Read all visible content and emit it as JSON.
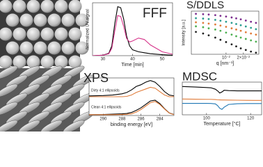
{
  "chart_data": [
    {
      "type": "line",
      "title": "FFF",
      "xlabel": "Time [min]",
      "ylabel": "Normalized UV signal",
      "x": [
        26.5,
        30,
        32,
        33,
        34,
        35,
        36,
        37,
        38,
        39,
        40,
        42,
        44,
        46,
        50,
        53.5
      ],
      "series": [
        {
          "color": "#000000",
          "values": [
            0,
            0.01,
            0.05,
            0.2,
            0.65,
            1.0,
            0.98,
            0.75,
            0.4,
            0.2,
            0.12,
            0.08,
            0.06,
            0.04,
            0.02,
            0.01
          ]
        },
        {
          "color": "#d6338a",
          "values": [
            0,
            0.01,
            0.04,
            0.15,
            0.5,
            0.82,
            0.8,
            0.6,
            0.35,
            0.28,
            0.3,
            0.36,
            0.33,
            0.22,
            0.08,
            0.03
          ]
        }
      ],
      "xlim": [
        26.5,
        53.5
      ],
      "ylim": [
        0,
        1.08
      ],
      "xticks": [
        30,
        40,
        50
      ]
    },
    {
      "type": "scatter",
      "title": "S/DDLS",
      "xlabel": "q [nm⁻¹]",
      "ylabel": "Intensity [a.u.]",
      "xlog": true,
      "ylog": true,
      "x": [
        0.003,
        0.004,
        0.005,
        0.0065,
        0.008,
        0.01,
        0.0125,
        0.015,
        0.018,
        0.022,
        0.027,
        0.033
      ],
      "series": [
        {
          "color": "#7b2d8e",
          "values": [
            6,
            5.5,
            5,
            4.3,
            3.6,
            3,
            2.4,
            1.9,
            1.5,
            1.1,
            0.8,
            0.6
          ]
        },
        {
          "color": "#2a9d8f",
          "values": [
            2,
            1.8,
            1.6,
            1.3,
            1.05,
            0.8,
            0.6,
            0.45,
            0.33,
            0.24,
            0.17,
            0.12
          ]
        },
        {
          "color": "#e07b39",
          "values": [
            0.7,
            0.6,
            0.5,
            0.4,
            0.3,
            0.22,
            0.15,
            0.11,
            0.08,
            0.055,
            0.04,
            0.03
          ]
        },
        {
          "color": "#4caf50",
          "values": [
            0.25,
            0.2,
            0.15,
            0.11,
            0.08,
            0.05,
            0.03,
            0.02,
            0.014,
            0.01,
            0.007,
            0.005
          ]
        },
        {
          "color": "#222222",
          "values": [
            0.06,
            0.04,
            0.025,
            0.014,
            0.008,
            0.0045,
            0.0025,
            0.0015,
            0.0009,
            0.0006,
            0.0004,
            0.0003
          ]
        }
      ],
      "xlim": [
        0.0025,
        0.037
      ],
      "ylim": [
        0.0002,
        12
      ],
      "xticks": [
        {
          "value": 0.01,
          "label": "10⁻²"
        },
        {
          "value": 0.02,
          "label": "2×10⁻²"
        }
      ]
    },
    {
      "type": "line",
      "title": "XPS",
      "xlabel": "binding energy [eV]",
      "annotations": [
        "Dirty 4:1 ellipsoids",
        "Clean 4:1 ellipsoids"
      ],
      "x": [
        291.5,
        290,
        289,
        288,
        287.5,
        287,
        286.5,
        286,
        285.5,
        285,
        284.5,
        284,
        283.5,
        283,
        282.5
      ],
      "series": [
        {
          "color": "#000000",
          "values": [
            1.15,
            1.17,
            1.2,
            1.27,
            1.35,
            1.5,
            1.7,
            1.8,
            1.95,
            2.05,
            1.95,
            1.7,
            1.4,
            1.2,
            1.15
          ]
        },
        {
          "color": "#e07b39",
          "values": [
            1.1,
            1.1,
            1.1,
            1.1,
            1.12,
            1.2,
            1.35,
            1.45,
            1.55,
            1.65,
            1.6,
            1.4,
            1.2,
            1.1,
            1.1
          ]
        },
        {
          "color": "#000000",
          "values": [
            0.05,
            0.06,
            0.08,
            0.1,
            0.12,
            0.18,
            0.3,
            0.45,
            0.65,
            0.85,
            0.9,
            0.7,
            0.4,
            0.15,
            0.06
          ]
        },
        {
          "color": "#e07b39",
          "values": [
            0.05,
            0.05,
            0.05,
            0.06,
            0.07,
            0.1,
            0.2,
            0.35,
            0.55,
            0.75,
            0.82,
            0.65,
            0.38,
            0.14,
            0.05
          ]
        }
      ],
      "xlim": [
        291.5,
        282.5
      ],
      "ylim": [
        0,
        2.2
      ],
      "xticks": [
        290,
        288,
        286,
        284
      ]
    },
    {
      "type": "line",
      "title": "MDSC",
      "xlabel": "Temperature [°C]",
      "x": [
        89,
        95,
        100,
        102,
        104,
        105,
        106,
        107,
        108,
        110,
        114,
        118,
        122,
        125
      ],
      "series": [
        {
          "color": "#000000",
          "values": [
            2.6,
            2.55,
            2.5,
            2.48,
            2.35,
            2.2,
            2.0,
            2.1,
            2.25,
            2.22,
            2.2,
            2.2,
            2.2,
            2.2
          ]
        },
        {
          "color": "#e07b39",
          "values": [
            1.45,
            1.43,
            1.42,
            1.42,
            1.4,
            1.38,
            1.37,
            1.36,
            1.36,
            1.35,
            1.34,
            1.33,
            1.32,
            1.32
          ]
        },
        {
          "color": "#1f77b4",
          "values": [
            1.05,
            1.05,
            1.05,
            1.04,
            1.0,
            0.85,
            0.6,
            0.5,
            0.7,
            0.95,
            1.02,
            1.03,
            1.03,
            1.03
          ]
        }
      ],
      "xlim": [
        89,
        125
      ],
      "ylim": [
        0,
        3
      ],
      "xticks": [
        100,
        120
      ]
    }
  ]
}
